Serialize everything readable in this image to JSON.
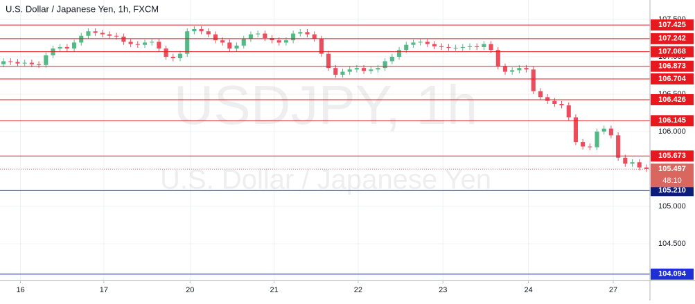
{
  "chart_data": {
    "type": "candlestick",
    "title": "U.S. Dollar / Japanese Yen, 1h, FXCM",
    "watermark_symbol": "USDJPY, 1h",
    "watermark_name": "U.S. Dollar / Japanese Yen",
    "up_color": "#53b987",
    "down_color": "#eb4d5c",
    "open": [
      106.9,
      106.94,
      106.93,
      106.91,
      106.92,
      106.9,
      106.89,
      107.02,
      107.11,
      107.13,
      107.11,
      107.19,
      107.28,
      107.34,
      107.32,
      107.3,
      107.28,
      107.27,
      107.2,
      107.17,
      107.16,
      107.19,
      107.2,
      107.11,
      107.0,
      106.98,
      107.04,
      107.34,
      107.37,
      107.34,
      107.3,
      107.22,
      107.19,
      107.11,
      107.15,
      107.24,
      107.3,
      107.31,
      107.25,
      107.22,
      107.19,
      107.22,
      107.31,
      107.33,
      107.3,
      107.24,
      107.04,
      106.85,
      106.76,
      106.8,
      106.83,
      106.85,
      106.81,
      106.83,
      106.85,
      106.94,
      107.0,
      107.09,
      107.16,
      107.19,
      107.2,
      107.17,
      107.14,
      107.13,
      107.12,
      107.12,
      107.13,
      107.14,
      107.13,
      107.17,
      107.09,
      106.87,
      106.8,
      106.82,
      106.85,
      106.83,
      106.54,
      106.46,
      106.41,
      106.37,
      106.35,
      106.19,
      105.86,
      105.8,
      105.79,
      106.0,
      106.04,
      105.95,
      105.65,
      105.57,
      105.59,
      105.52
    ],
    "high": [
      106.98,
      106.98,
      106.97,
      106.96,
      106.96,
      106.94,
      107.06,
      107.15,
      107.17,
      107.17,
      107.23,
      107.32,
      107.38,
      107.38,
      107.36,
      107.34,
      107.32,
      107.31,
      107.24,
      107.21,
      107.23,
      107.24,
      107.24,
      107.15,
      107.04,
      107.08,
      107.38,
      107.41,
      107.41,
      107.38,
      107.34,
      107.26,
      107.23,
      107.19,
      107.28,
      107.34,
      107.35,
      107.35,
      107.29,
      107.26,
      107.26,
      107.35,
      107.37,
      107.37,
      107.34,
      107.28,
      107.08,
      106.89,
      106.84,
      106.87,
      106.89,
      106.89,
      106.87,
      106.89,
      106.98,
      107.04,
      107.13,
      107.2,
      107.23,
      107.24,
      107.24,
      107.21,
      107.18,
      107.17,
      107.16,
      107.17,
      107.18,
      107.18,
      107.21,
      107.21,
      107.13,
      106.91,
      106.86,
      106.89,
      106.89,
      106.87,
      106.58,
      106.5,
      106.45,
      106.41,
      106.39,
      106.23,
      105.9,
      105.84,
      106.04,
      106.08,
      106.08,
      105.99,
      105.69,
      105.63,
      105.63,
      105.56
    ],
    "low": [
      106.86,
      106.89,
      106.87,
      106.87,
      106.86,
      106.85,
      106.85,
      106.98,
      107.07,
      107.07,
      107.07,
      107.15,
      107.24,
      107.28,
      107.26,
      107.24,
      107.23,
      107.16,
      107.13,
      107.12,
      107.12,
      107.15,
      107.07,
      106.96,
      106.94,
      106.94,
      107.0,
      107.3,
      107.3,
      107.26,
      107.18,
      107.15,
      107.07,
      107.07,
      107.11,
      107.2,
      107.26,
      107.21,
      107.18,
      107.15,
      107.15,
      107.18,
      107.27,
      107.26,
      107.2,
      107.0,
      106.81,
      106.72,
      106.72,
      106.76,
      106.79,
      106.77,
      106.77,
      106.79,
      106.81,
      106.9,
      106.96,
      107.05,
      107.12,
      107.15,
      107.13,
      107.1,
      107.09,
      107.08,
      107.08,
      107.08,
      107.09,
      107.09,
      107.09,
      107.05,
      106.83,
      106.76,
      106.76,
      106.78,
      106.79,
      106.5,
      106.42,
      106.37,
      106.33,
      106.31,
      106.15,
      105.82,
      105.76,
      105.75,
      105.75,
      105.96,
      105.91,
      105.61,
      105.53,
      105.53,
      105.48,
      105.46
    ],
    "close": [
      106.94,
      106.93,
      106.91,
      106.92,
      106.9,
      106.89,
      107.02,
      107.11,
      107.13,
      107.11,
      107.19,
      107.28,
      107.34,
      107.32,
      107.3,
      107.28,
      107.27,
      107.2,
      107.17,
      107.16,
      107.19,
      107.2,
      107.11,
      107.0,
      106.98,
      107.04,
      107.34,
      107.37,
      107.34,
      107.3,
      107.22,
      107.19,
      107.11,
      107.15,
      107.24,
      107.3,
      107.31,
      107.25,
      107.22,
      107.19,
      107.22,
      107.31,
      107.33,
      107.3,
      107.24,
      107.04,
      106.85,
      106.76,
      106.8,
      106.83,
      106.85,
      106.81,
      106.83,
      106.85,
      106.94,
      107.0,
      107.09,
      107.16,
      107.19,
      107.2,
      107.17,
      107.14,
      107.13,
      107.12,
      107.12,
      107.13,
      107.14,
      107.13,
      107.17,
      107.09,
      106.87,
      106.8,
      106.82,
      106.85,
      106.83,
      106.54,
      106.46,
      106.41,
      106.37,
      106.35,
      106.19,
      105.86,
      105.8,
      105.79,
      106.0,
      106.04,
      105.95,
      105.65,
      105.57,
      105.59,
      105.52,
      105.5
    ],
    "xlim": [
      0,
      92
    ],
    "xticks": [
      {
        "value": 2.9,
        "label": "16"
      },
      {
        "value": 14.7,
        "label": "17"
      },
      {
        "value": 26.9,
        "label": "20"
      },
      {
        "value": 38.8,
        "label": "21"
      },
      {
        "value": 50.7,
        "label": "22"
      },
      {
        "value": 62.7,
        "label": "23"
      },
      {
        "value": 74.8,
        "label": "24"
      },
      {
        "value": 86.8,
        "label": "27"
      }
    ],
    "ylim": [
      104.009,
      107.759
    ],
    "yticks": [
      {
        "value": 104.5,
        "label": "104.500"
      },
      {
        "value": 105,
        "label": "105.000"
      },
      {
        "value": 105.5,
        "label": "105.500"
      },
      {
        "value": 106,
        "label": "106.000"
      },
      {
        "value": 106.5,
        "label": "106.500"
      },
      {
        "value": 107,
        "label": "107.000"
      },
      {
        "value": 107.5,
        "label": "107.500"
      }
    ],
    "grid": true,
    "levels": [
      {
        "value": 107.425,
        "color": "#e8191e"
      },
      {
        "value": 107.242,
        "color": "#e8191e"
      },
      {
        "value": 107.068,
        "color": "#e8191e"
      },
      {
        "value": 106.873,
        "color": "#e8191e"
      },
      {
        "value": 106.704,
        "color": "#e8191e"
      },
      {
        "value": 106.426,
        "color": "#e8191e"
      },
      {
        "value": 106.145,
        "color": "#e8191e"
      },
      {
        "value": 105.673,
        "color": "#e8191e"
      },
      {
        "value": 105.21,
        "label": "105.210",
        "color": "#0c1d78"
      },
      {
        "value": 104.094,
        "color": "#1f2fd6"
      }
    ],
    "price_line": {
      "value": 105.497,
      "countdown": "48:10",
      "color": "#d9675f"
    }
  }
}
